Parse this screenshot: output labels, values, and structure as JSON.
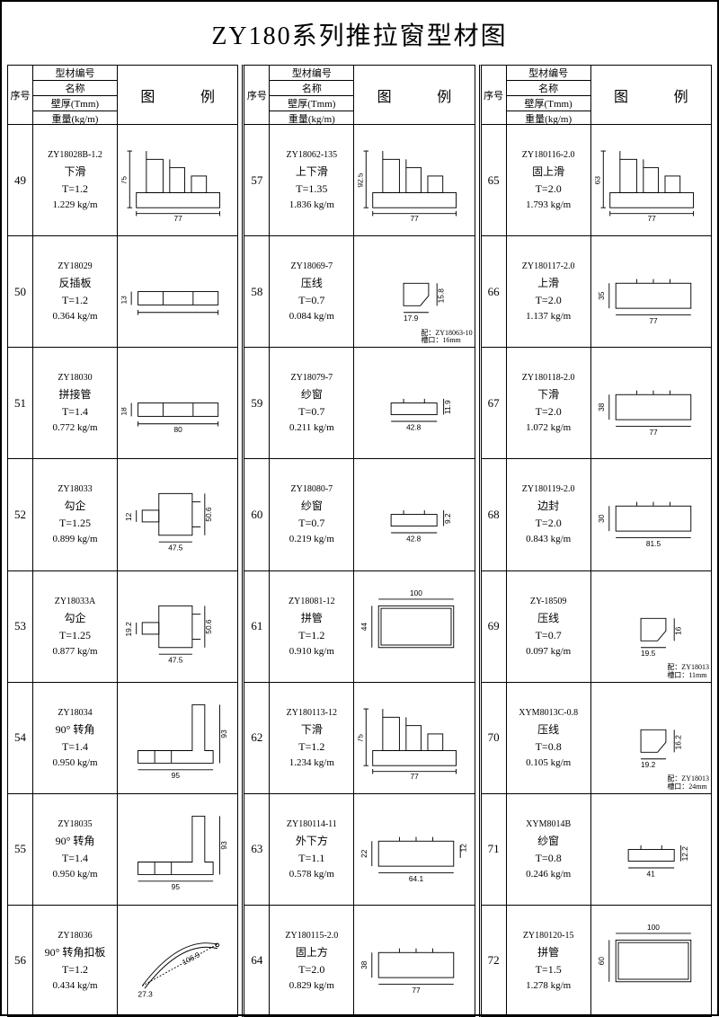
{
  "title": "ZY180系列推拉窗型材图",
  "headers": {
    "seq": "序号",
    "code": "型材编号",
    "name": "名称",
    "thick": "壁厚(Tmm)",
    "weight": "重量(kg/m)",
    "tu": "图",
    "li": "例"
  },
  "columns": [
    [
      {
        "seq": "49",
        "code": "ZY18028B-1.2",
        "name": "下滑",
        "t": "T=1.2",
        "wt": "1.229 kg/m",
        "dims": {
          "w": "77",
          "h": "75"
        }
      },
      {
        "seq": "50",
        "code": "ZY18029",
        "name": "反插板",
        "t": "T=1.2",
        "wt": "0.364 kg/m",
        "dims": {
          "h": "13"
        }
      },
      {
        "seq": "51",
        "code": "ZY18030",
        "name": "拼接管",
        "t": "T=1.4",
        "wt": "0.772 kg/m",
        "dims": {
          "w": "80",
          "h": "18"
        }
      },
      {
        "seq": "52",
        "code": "ZY18033",
        "name": "勾企",
        "t": "T=1.25",
        "wt": "0.899 kg/m",
        "dims": {
          "w": "47.5",
          "h": "50.6",
          "h2": "12"
        }
      },
      {
        "seq": "53",
        "code": "ZY18033A",
        "name": "勾企",
        "t": "T=1.25",
        "wt": "0.877 kg/m",
        "dims": {
          "w": "47.5",
          "h": "50.6",
          "h2": "19.2"
        }
      },
      {
        "seq": "54",
        "code": "ZY18034",
        "name": "90° 转角",
        "t": "T=1.4",
        "wt": "0.950 kg/m",
        "dims": {
          "w": "95",
          "h": "93"
        }
      },
      {
        "seq": "55",
        "code": "ZY18035",
        "name": "90° 转角",
        "t": "T=1.4",
        "wt": "0.950 kg/m",
        "dims": {
          "w": "95",
          "h": "93"
        }
      },
      {
        "seq": "56",
        "code": "ZY18036",
        "name": "90° 转角扣板",
        "t": "T=1.2",
        "wt": "0.434 kg/m",
        "dims": {
          "w": "106.9",
          "h": "27.3"
        }
      }
    ],
    [
      {
        "seq": "57",
        "code": "ZY18062-135",
        "name": "上下滑",
        "t": "T=1.35",
        "wt": "1.836 kg/m",
        "dims": {
          "w": "77",
          "h": "92.5"
        }
      },
      {
        "seq": "58",
        "code": "ZY18069-7",
        "name": "压线",
        "t": "T=0.7",
        "wt": "0.084 kg/m",
        "dims": {
          "w": "17.9",
          "h": "15.8"
        },
        "note": "配：ZY18063-10\n槽口：16mm"
      },
      {
        "seq": "59",
        "code": "ZY18079-7",
        "name": "纱窗",
        "t": "T=0.7",
        "wt": "0.211 kg/m",
        "dims": {
          "w": "42.8",
          "h": "11.9"
        }
      },
      {
        "seq": "60",
        "code": "ZY18080-7",
        "name": "纱窗",
        "t": "T=0.7",
        "wt": "0.219 kg/m",
        "dims": {
          "w": "42.8",
          "h": "9.2"
        }
      },
      {
        "seq": "61",
        "code": "ZY18081-12",
        "name": "拼管",
        "t": "T=1.2",
        "wt": "0.910 kg/m",
        "dims": {
          "w": "100",
          "h": "44"
        }
      },
      {
        "seq": "62",
        "code": "ZY180113-12",
        "name": "下滑",
        "t": "T=1.2",
        "wt": "1.234 kg/m",
        "dims": {
          "w": "77",
          "h": "75"
        }
      },
      {
        "seq": "63",
        "code": "ZY180114-11",
        "name": "外下方",
        "t": "T=1.1",
        "wt": "0.578 kg/m",
        "dims": {
          "w": "64.1",
          "h": "22",
          "h2": "12"
        }
      },
      {
        "seq": "64",
        "code": "ZY180115-2.0",
        "name": "固上方",
        "t": "T=2.0",
        "wt": "0.829 kg/m",
        "dims": {
          "w": "77",
          "h": "38"
        }
      }
    ],
    [
      {
        "seq": "65",
        "code": "ZY180116-2.0",
        "name": "固上滑",
        "t": "T=2.0",
        "wt": "1.793 kg/m",
        "dims": {
          "w": "77",
          "h": "63"
        }
      },
      {
        "seq": "66",
        "code": "ZY180117-2.0",
        "name": "上滑",
        "t": "T=2.0",
        "wt": "1.137 kg/m",
        "dims": {
          "w": "77",
          "h": "35"
        }
      },
      {
        "seq": "67",
        "code": "ZY180118-2.0",
        "name": "下滑",
        "t": "T=2.0",
        "wt": "1.072 kg/m",
        "dims": {
          "w": "77",
          "h": "38"
        }
      },
      {
        "seq": "68",
        "code": "ZY180119-2.0",
        "name": "边封",
        "t": "T=2.0",
        "wt": "0.843 kg/m",
        "dims": {
          "w": "81.5",
          "h": "30"
        }
      },
      {
        "seq": "69",
        "code": "ZY-18509",
        "name": "压线",
        "t": "T=0.7",
        "wt": "0.097 kg/m",
        "dims": {
          "w": "19.5",
          "h": "16"
        },
        "note": "配：ZY18013\n槽口：11mm"
      },
      {
        "seq": "70",
        "code": "XYM8013C-0.8",
        "name": "压线",
        "t": "T=0.8",
        "wt": "0.105 kg/m",
        "dims": {
          "w": "19.2",
          "h": "16.2"
        },
        "note": "配：ZY18013\n槽口：24mm"
      },
      {
        "seq": "71",
        "code": "XYM8014B",
        "name": "纱窗",
        "t": "T=0.8",
        "wt": "0.246 kg/m",
        "dims": {
          "w": "41",
          "h": "12.2"
        }
      },
      {
        "seq": "72",
        "code": "ZY180120-15",
        "name": "拼管",
        "t": "T=1.5",
        "wt": "1.278 kg/m",
        "dims": {
          "w": "100",
          "h": "60"
        }
      }
    ]
  ]
}
